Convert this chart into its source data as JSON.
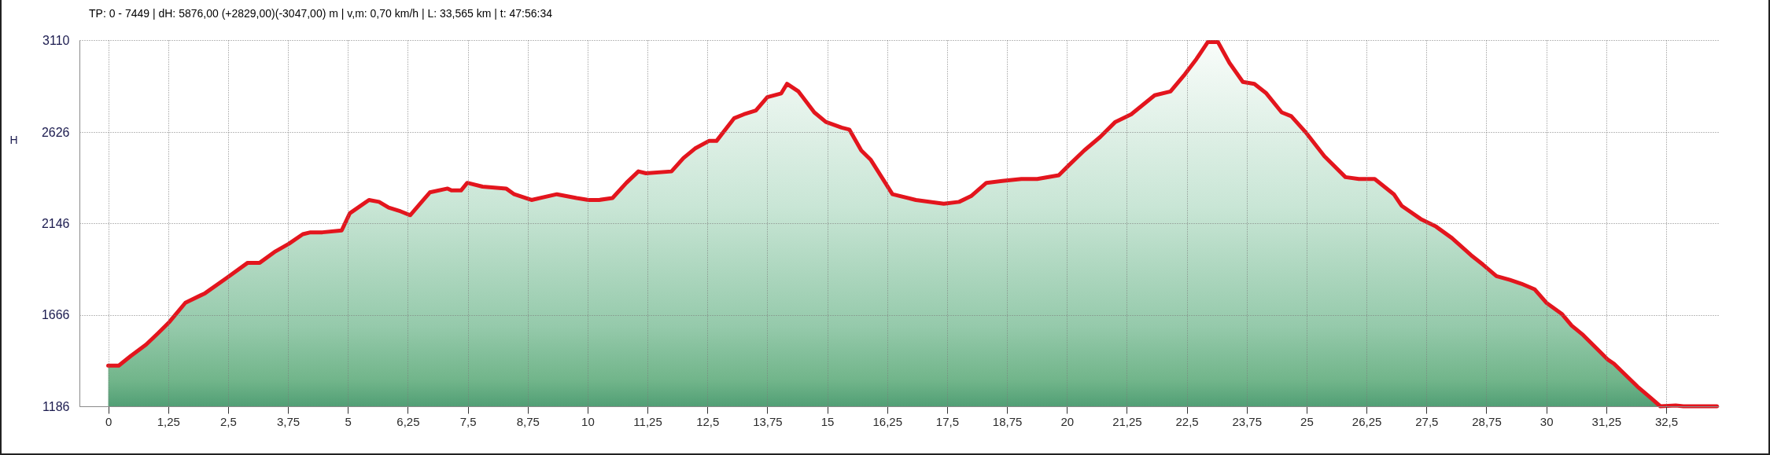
{
  "chart_data": {
    "type": "area",
    "title": "TP: 0 - 7449 | dH: 5876,00 (+2829,00)(-3047,00) m | v,m: 0,70 km/h | L: 33,565 km | t: 47:56:34",
    "ylabel": "H",
    "x": [
      0,
      0.22,
      0.47,
      0.79,
      1.04,
      1.28,
      1.61,
      2.02,
      2.47,
      2.91,
      3.16,
      3.49,
      3.77,
      4.06,
      4.22,
      4.47,
      4.87,
      5.04,
      5.44,
      5.65,
      5.85,
      6.1,
      6.3,
      6.71,
      7.08,
      7.16,
      7.36,
      7.49,
      7.81,
      8.3,
      8.47,
      8.83,
      9.36,
      9.77,
      10.02,
      10.24,
      10.52,
      10.81,
      11.06,
      11.22,
      11.75,
      12,
      12.24,
      12.53,
      12.69,
      13.06,
      13.26,
      13.51,
      13.75,
      14.04,
      14.16,
      14.4,
      14.73,
      14.97,
      15.3,
      15.46,
      15.71,
      15.91,
      16.36,
      16.85,
      17.43,
      17.75,
      18,
      18.32,
      18.65,
      19.05,
      19.38,
      19.83,
      20.03,
      20.36,
      20.69,
      21.01,
      21.34,
      21.83,
      22.16,
      22.46,
      22.7,
      22.94,
      23.15,
      23.39,
      23.67,
      23.91,
      24.16,
      24.48,
      24.68,
      25,
      25.37,
      25.81,
      26.09,
      26.42,
      26.82,
      26.98,
      27.38,
      27.7,
      28.03,
      28.43,
      28.68,
      28.96,
      29.24,
      29.48,
      29.76,
      30,
      30.33,
      30.53,
      30.77,
      31.29,
      31.41,
      31.9,
      32.18,
      32.38,
      32.7,
      32.86,
      33.56
    ],
    "series": [
      {
        "color": "#e3151d",
        "values": [
          1400,
          1400,
          1450,
          1510,
          1570,
          1630,
          1730,
          1780,
          1860,
          1940,
          1940,
          2000,
          2040,
          2090,
          2100,
          2100,
          2110,
          2200,
          2270,
          2260,
          2230,
          2210,
          2190,
          2310,
          2330,
          2320,
          2320,
          2360,
          2340,
          2330,
          2300,
          2270,
          2300,
          2280,
          2270,
          2270,
          2280,
          2360,
          2420,
          2410,
          2420,
          2490,
          2540,
          2580,
          2580,
          2700,
          2720,
          2740,
          2810,
          2830,
          2880,
          2840,
          2730,
          2680,
          2650,
          2640,
          2530,
          2480,
          2300,
          2270,
          2250,
          2260,
          2290,
          2360,
          2370,
          2380,
          2380,
          2400,
          2450,
          2530,
          2600,
          2680,
          2720,
          2820,
          2840,
          2930,
          3010,
          3100,
          3100,
          2990,
          2890,
          2880,
          2830,
          2730,
          2710,
          2620,
          2500,
          2390,
          2380,
          2380,
          2300,
          2240,
          2170,
          2130,
          2070,
          1980,
          1930,
          1870,
          1850,
          1830,
          1800,
          1730,
          1670,
          1610,
          1560,
          1430,
          1410,
          1290,
          1230,
          1186,
          1190,
          1186,
          1186
        ]
      }
    ],
    "xlim": [
      -0.6,
      33.6
    ],
    "xticks": [
      0,
      {
        "value": 1.25,
        "label": "1,25"
      },
      {
        "value": 2.5,
        "label": "2,5"
      },
      {
        "value": 3.75,
        "label": "3,75"
      },
      5,
      {
        "value": 6.25,
        "label": "6,25"
      },
      {
        "value": 7.5,
        "label": "7,5"
      },
      {
        "value": 8.75,
        "label": "8,75"
      },
      10,
      {
        "value": 11.25,
        "label": "11,25"
      },
      {
        "value": 12.5,
        "label": "12,5"
      },
      {
        "value": 13.75,
        "label": "13,75"
      },
      15,
      {
        "value": 16.25,
        "label": "16,25"
      },
      {
        "value": 17.5,
        "label": "17,5"
      },
      {
        "value": 18.75,
        "label": "18,75"
      },
      20,
      {
        "value": 21.25,
        "label": "21,25"
      },
      {
        "value": 22.5,
        "label": "22,5"
      },
      {
        "value": 23.75,
        "label": "23,75"
      },
      25,
      {
        "value": 26.25,
        "label": "26,25"
      },
      {
        "value": 27.5,
        "label": "27,5"
      },
      {
        "value": 28.75,
        "label": "28,75"
      },
      30,
      {
        "value": 31.25,
        "label": "31,25"
      },
      {
        "value": 32.5,
        "label": "32,5"
      }
    ],
    "ylim": [
      1186,
      3110
    ],
    "yticks": [
      1186,
      1666,
      2146,
      2626,
      3110
    ],
    "grid": true
  }
}
